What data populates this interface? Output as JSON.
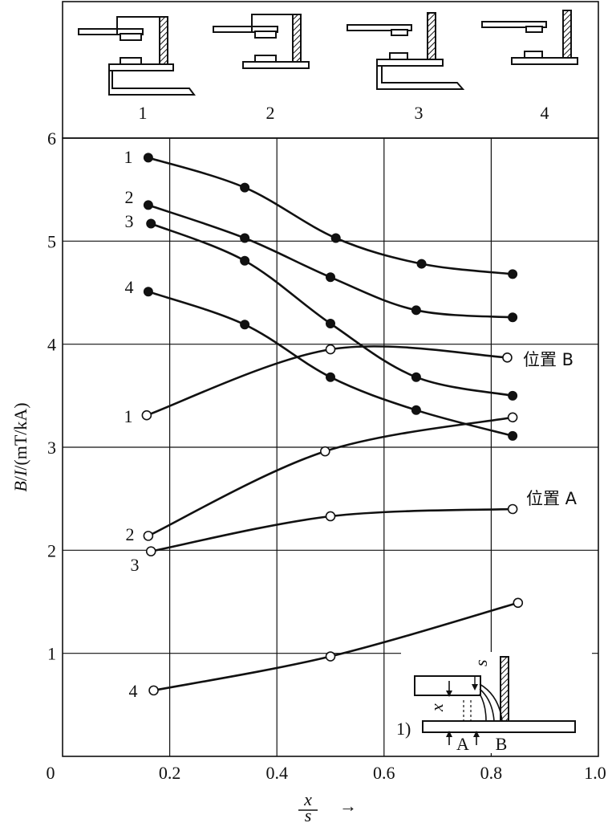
{
  "chart_data": {
    "type": "line",
    "ylabel_parts": [
      "B",
      "/",
      "I",
      "/(mT/kA)"
    ],
    "xlabel": {
      "numerator": "x",
      "denominator": "s",
      "arrow": "→"
    },
    "xlim": [
      0,
      1.0
    ],
    "ylim": [
      0,
      6
    ],
    "xticks": [
      "0",
      "0.2",
      "0.4",
      "0.6",
      "0.8",
      "1.0"
    ],
    "yticks": [
      "1",
      "2",
      "3",
      "4",
      "5",
      "6"
    ],
    "grid": true,
    "config_labels": [
      "1",
      "2",
      "3",
      "4"
    ],
    "series": [
      {
        "name": "1",
        "position": "B",
        "marker": "filled",
        "x": [
          0.16,
          0.34,
          0.51,
          0.67,
          0.84
        ],
        "y": [
          5.81,
          5.52,
          5.03,
          4.78,
          4.68
        ]
      },
      {
        "name": "2",
        "position": "B",
        "marker": "filled",
        "x": [
          0.16,
          0.34,
          0.5,
          0.66,
          0.84
        ],
        "y": [
          5.35,
          5.03,
          4.65,
          4.33,
          4.26
        ]
      },
      {
        "name": "3",
        "position": "B",
        "marker": "filled",
        "x": [
          0.165,
          0.34,
          0.5,
          0.66,
          0.84
        ],
        "y": [
          5.17,
          4.81,
          4.2,
          3.68,
          3.5
        ]
      },
      {
        "name": "4",
        "position": "B",
        "marker": "filled",
        "x": [
          0.16,
          0.34,
          0.5,
          0.66,
          0.84
        ],
        "y": [
          4.51,
          4.19,
          3.68,
          3.36,
          3.11
        ]
      },
      {
        "name": "1",
        "position": "A",
        "marker": "open",
        "x": [
          0.157,
          0.5,
          0.83
        ],
        "y": [
          3.31,
          3.95,
          3.87
        ]
      },
      {
        "name": "2",
        "position": "A",
        "marker": "open",
        "x": [
          0.16,
          0.49,
          0.84
        ],
        "y": [
          2.14,
          2.96,
          3.29
        ]
      },
      {
        "name": "3",
        "position": "A",
        "marker": "open",
        "x": [
          0.165,
          0.5,
          0.84
        ],
        "y": [
          1.99,
          2.33,
          2.4
        ]
      },
      {
        "name": "4",
        "position": "A",
        "marker": "open",
        "x": [
          0.17,
          0.5,
          0.85
        ],
        "y": [
          0.64,
          0.97,
          1.49
        ]
      }
    ],
    "annotations": {
      "position_B": "位置 B",
      "position_A": "位置 A",
      "inset_number": "1)",
      "inset_s": "s",
      "inset_x": "x",
      "inset_A": "A",
      "inset_B": "B"
    },
    "curve_labels": {
      "filled": [
        "1",
        "2",
        "3",
        "4"
      ],
      "open": [
        "1",
        "2",
        "3",
        "4"
      ]
    }
  }
}
